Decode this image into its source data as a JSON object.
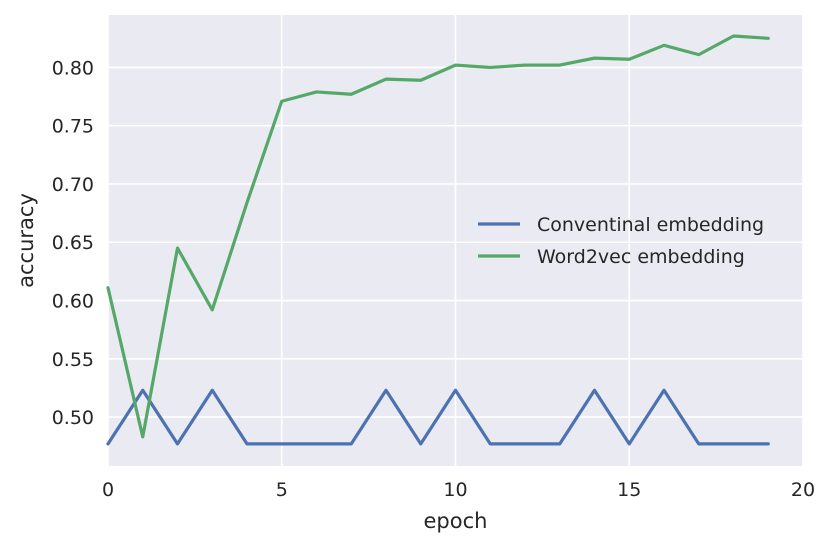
{
  "chart_data": {
    "type": "line",
    "xlabel": "epoch",
    "ylabel": "accuracy",
    "xlim": [
      0,
      20
    ],
    "ylim": [
      0.458,
      0.845
    ],
    "xticks": [
      0,
      5,
      10,
      15,
      20
    ],
    "yticks": [
      0.5,
      0.55,
      0.6,
      0.65,
      0.7,
      0.75,
      0.8
    ],
    "ytick_labels": [
      "0.50",
      "0.55",
      "0.60",
      "0.65",
      "0.70",
      "0.75",
      "0.80"
    ],
    "xtick_labels": [
      "0",
      "5",
      "10",
      "15",
      "20"
    ],
    "grid": true,
    "background": "#eaeaf2",
    "legend_position": "center-right",
    "x": [
      0,
      1,
      2,
      3,
      4,
      5,
      6,
      7,
      8,
      9,
      10,
      11,
      12,
      13,
      14,
      15,
      16,
      17,
      18,
      19
    ],
    "series": [
      {
        "name": "Conventinal embedding",
        "color": "#4c72b0",
        "values": [
          0.477,
          0.523,
          0.477,
          0.523,
          0.477,
          0.477,
          0.477,
          0.477,
          0.523,
          0.477,
          0.523,
          0.477,
          0.477,
          0.477,
          0.523,
          0.477,
          0.523,
          0.477,
          0.477,
          0.477
        ]
      },
      {
        "name": "Word2vec embedding",
        "color": "#55a868",
        "values": [
          0.611,
          0.483,
          0.645,
          0.592,
          0.684,
          0.771,
          0.779,
          0.777,
          0.79,
          0.789,
          0.802,
          0.8,
          0.802,
          0.802,
          0.808,
          0.807,
          0.819,
          0.811,
          0.827,
          0.825
        ]
      }
    ]
  }
}
